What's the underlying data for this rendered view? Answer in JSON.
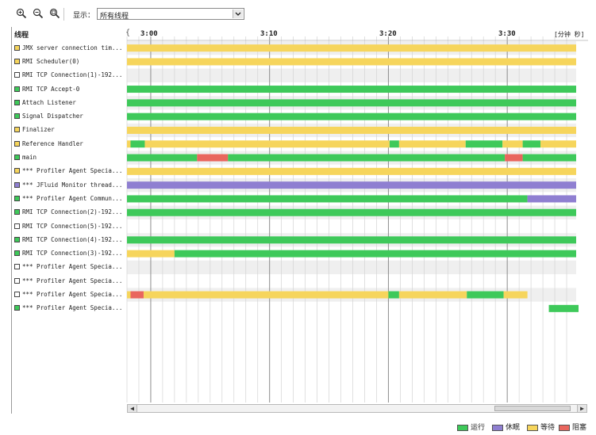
{
  "colors": {
    "running": "#3ec95a",
    "sleeping": "#8f7fd1",
    "waiting": "#f6d55c",
    "blocked": "#e9665e",
    "none": "#ffffff",
    "grid": "#d4d4d4",
    "major_grid": "#8c8c8c",
    "stripe": "#efefef"
  },
  "toolbar": {
    "icons": [
      "zoom-in-icon",
      "zoom-out-icon",
      "zoom-fit-icon"
    ],
    "show_label": "显示：",
    "show_value": "所有线程"
  },
  "header": {
    "thread_col": "线程",
    "brace": "{",
    "ticks": [
      "3:00",
      "3:10",
      "3:20",
      "3:30"
    ],
    "unit": "[分钟 秒]"
  },
  "chart_data": {
    "type": "timeline",
    "x_range_minutes": [
      2.0,
      39.8
    ],
    "tick_minutes": [
      4.0,
      14.0,
      24.0,
      34.0
    ],
    "threads": [
      {
        "name": "JMX server connection tim...",
        "state": "waiting",
        "segments": [
          [
            2.0,
            39.8,
            "waiting"
          ]
        ]
      },
      {
        "name": "RMI Scheduler(0)",
        "state": "waiting",
        "segments": [
          [
            2.0,
            39.8,
            "waiting"
          ]
        ]
      },
      {
        "name": "RMI TCP Connection(1)-192...",
        "state": "none",
        "segments": []
      },
      {
        "name": "RMI TCP Accept-0",
        "state": "running",
        "segments": [
          [
            2.0,
            39.8,
            "running"
          ]
        ]
      },
      {
        "name": "Attach Listener",
        "state": "running",
        "segments": [
          [
            2.0,
            39.8,
            "running"
          ]
        ]
      },
      {
        "name": "Signal Dispatcher",
        "state": "running",
        "segments": [
          [
            2.0,
            39.8,
            "running"
          ]
        ]
      },
      {
        "name": "Finalizer",
        "state": "waiting",
        "segments": [
          [
            2.0,
            39.8,
            "waiting"
          ]
        ]
      },
      {
        "name": "Reference Handler",
        "state": "waiting",
        "segments": [
          [
            2.0,
            2.3,
            "waiting"
          ],
          [
            2.3,
            3.5,
            "running"
          ],
          [
            3.5,
            24.1,
            "waiting"
          ],
          [
            24.1,
            24.9,
            "running"
          ],
          [
            24.9,
            30.5,
            "waiting"
          ],
          [
            30.5,
            33.6,
            "running"
          ],
          [
            33.6,
            35.3,
            "waiting"
          ],
          [
            35.3,
            36.8,
            "running"
          ],
          [
            36.8,
            39.8,
            "waiting"
          ]
        ]
      },
      {
        "name": "main",
        "state": "running",
        "segments": [
          [
            2.0,
            7.9,
            "running"
          ],
          [
            7.9,
            10.5,
            "blocked"
          ],
          [
            10.5,
            33.8,
            "running"
          ],
          [
            33.8,
            35.3,
            "blocked"
          ],
          [
            35.3,
            39.8,
            "running"
          ]
        ]
      },
      {
        "name": "*** Profiler Agent Specia...",
        "state": "waiting",
        "segments": [
          [
            2.0,
            39.8,
            "waiting"
          ]
        ]
      },
      {
        "name": "*** JFluid Monitor thread...",
        "state": "sleeping",
        "segments": [
          [
            2.0,
            39.8,
            "sleeping"
          ]
        ]
      },
      {
        "name": "*** Profiler Agent Commun...",
        "state": "running",
        "segments": [
          [
            2.0,
            35.7,
            "running"
          ],
          [
            35.7,
            39.8,
            "sleeping"
          ]
        ]
      },
      {
        "name": "RMI TCP Connection(2)-192...",
        "state": "running",
        "segments": [
          [
            2.0,
            39.8,
            "running"
          ]
        ]
      },
      {
        "name": "RMI TCP Connection(5)-192...",
        "state": "none",
        "segments": []
      },
      {
        "name": "RMI TCP Connection(4)-192...",
        "state": "running",
        "segments": [
          [
            2.0,
            39.8,
            "running"
          ]
        ]
      },
      {
        "name": "RMI TCP Connection(3)-192...",
        "state": "running",
        "segments": [
          [
            2.0,
            6.0,
            "waiting"
          ],
          [
            6.0,
            39.8,
            "running"
          ]
        ]
      },
      {
        "name": "*** Profiler Agent Specia...",
        "state": "none",
        "segments": []
      },
      {
        "name": "*** Profiler Agent Specia...",
        "state": "none",
        "segments": []
      },
      {
        "name": "*** Profiler Agent Specia...",
        "state": "none",
        "segments": [
          [
            2.0,
            2.3,
            "waiting"
          ],
          [
            2.3,
            3.4,
            "blocked"
          ],
          [
            3.4,
            24.0,
            "waiting"
          ],
          [
            24.0,
            24.9,
            "running"
          ],
          [
            24.9,
            30.6,
            "waiting"
          ],
          [
            30.6,
            33.7,
            "running"
          ],
          [
            33.7,
            35.7,
            "waiting"
          ]
        ]
      },
      {
        "name": "*** Profiler Agent Specia...",
        "state": "running",
        "segments": [
          [
            37.5,
            40.0,
            "running"
          ]
        ]
      }
    ]
  },
  "scrollbar": {
    "left_arrow": "◀",
    "right_arrow": "▶",
    "grip": "⁞"
  },
  "legend": [
    {
      "label": "运行",
      "state": "running"
    },
    {
      "label": "休眠",
      "state": "sleeping"
    },
    {
      "label": "等待",
      "state": "waiting"
    },
    {
      "label": "阻塞",
      "state": "blocked"
    }
  ]
}
